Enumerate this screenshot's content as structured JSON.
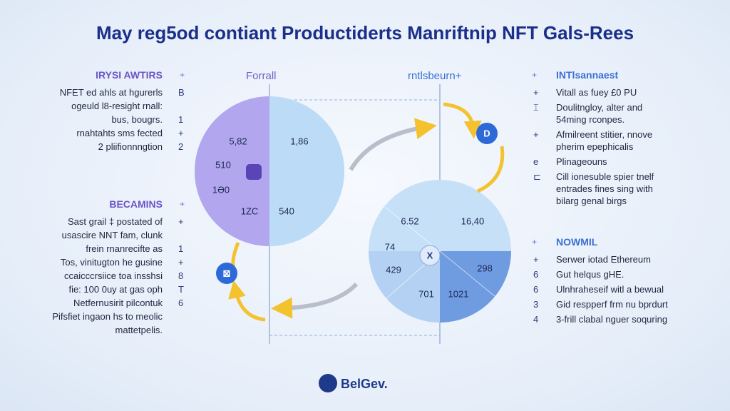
{
  "title": "May reg5od contiant Productiderts Manriftnip NFT Gals-Rees",
  "left_panel": {
    "sections": [
      {
        "heading": "IRYSI AWTIRS",
        "heading_marker": "+",
        "rows": [
          {
            "lines": [
              "NFET ed ahls at hgurerls"
            ],
            "marker": "B"
          },
          {
            "lines": [
              "ogeuld l8-resight rnall:"
            ]
          },
          {
            "lines": [
              "bus, bougrs."
            ],
            "marker": "1"
          },
          {
            "lines": [
              "rnahtahts sms fected"
            ],
            "marker": "+"
          },
          {
            "lines": [
              "2 pliifionnngtion"
            ],
            "marker": "2"
          }
        ]
      },
      {
        "heading": "BECAMINS",
        "heading_marker": "+",
        "rows": [
          {
            "lines": [
              "Sast grail ‡ postated of"
            ],
            "marker": "+"
          },
          {
            "lines": [
              "usascire NNT fam, clunk"
            ]
          },
          {
            "lines": [
              "frein rnanrecifte as"
            ],
            "marker": "1"
          },
          {
            "lines": [
              "Tos, vinitugton he gusine"
            ],
            "marker": "+"
          },
          {
            "lines": [
              "ccaicccrsiice toa insshsi"
            ],
            "marker": "8"
          },
          {
            "lines": [
              "fie: 100 0uy at gas oph"
            ],
            "marker": "T"
          },
          {
            "lines": [
              "Netfernusirit pilcontuk"
            ],
            "marker": "6"
          },
          {
            "lines": [
              "Pifsfiet ingaon hs to meolic"
            ]
          },
          {
            "lines": [
              "mattetpelis."
            ]
          }
        ]
      }
    ]
  },
  "right_panel": {
    "sections": [
      {
        "heading": "INTlsannaest",
        "heading_marker": "+",
        "rows": [
          {
            "lines": [
              "Vitall as fuey £0 PU"
            ],
            "marker": "+"
          },
          {
            "lines": [
              "Doulitngloy, alter and",
              "54ming rconpes."
            ],
            "marker": "⌶"
          },
          {
            "lines": [
              "Afmilreent stitier, nnove",
              "pherim epephicalis"
            ],
            "marker": "+"
          },
          {
            "lines": [
              "Plinageouns"
            ],
            "marker": "e"
          },
          {
            "lines": [
              "Cill ionesuble spier tnelf",
              "entrades fines sing with",
              "bilarg genal birgs"
            ],
            "marker": "⊏"
          }
        ]
      },
      {
        "heading": "NOWMIL",
        "heading_marker": "+",
        "rows": [
          {
            "lines": [
              "Serwer iotad Ethereum"
            ],
            "marker": "+"
          },
          {
            "lines": [
              "Gut helqus gHE."
            ],
            "marker": "6"
          },
          {
            "lines": [
              "Ulnhraheseif witl a bewual"
            ],
            "marker": "6"
          },
          {
            "lines": [
              "Gid respperf frm nu bprdurt"
            ],
            "marker": "3"
          },
          {
            "lines": [
              "3-frill clabal nguer soquring"
            ],
            "marker": "4"
          }
        ]
      }
    ]
  },
  "center": {
    "label_left": "Forrall",
    "label_right": "rntlsbeurn+",
    "circle_top": [
      "5,82",
      "1,86",
      "510",
      "1Ə0",
      "1ZC",
      "540"
    ],
    "circle_bottom": [
      "6.52",
      "16,40",
      "74",
      "429",
      "298",
      "701",
      "1021"
    ],
    "badge_right": "D",
    "badge_left": "⊠",
    "circle_bottom_icon": "X"
  },
  "footer": {
    "brand": "BelGev."
  }
}
